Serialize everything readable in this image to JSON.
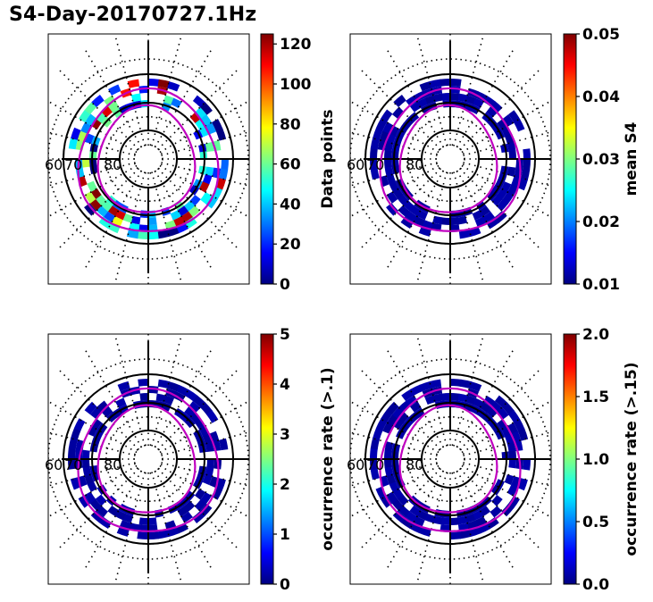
{
  "title": "S4-Day-20170727.1Hz",
  "chart_data": {
    "type": "heatmap",
    "projection": "polar (magnetic latitude / MLT)",
    "title": "S4-Day-20170727.1Hz",
    "latitude_labels": [
      "60",
      "70",
      "80"
    ],
    "oval_color": "#c000c0",
    "panels": [
      {
        "id": "data-points",
        "colorbar_label": "Data points",
        "colormap": "jet",
        "vmin": 0,
        "vmax": 125,
        "ticks": [
          "0",
          "20",
          "40",
          "60",
          "80",
          "100",
          "120"
        ],
        "tick_values": [
          0,
          20,
          40,
          60,
          80,
          100,
          120
        ],
        "typical_cell_values": "10-120, highest near auroral oval",
        "grid": true
      },
      {
        "id": "mean-s4",
        "colorbar_label": "mean S4",
        "colormap": "jet",
        "vmin": 0.01,
        "vmax": 0.05,
        "ticks": [
          "0.01",
          "0.02",
          "0.03",
          "0.04",
          "0.05"
        ],
        "tick_values": [
          0.01,
          0.02,
          0.03,
          0.04,
          0.05
        ],
        "typical_cell_values": "~0.01",
        "grid": true
      },
      {
        "id": "occurrence-rate-01",
        "colorbar_label": "occurrence rate (>.1)",
        "colormap": "jet",
        "vmin": 0,
        "vmax": 5,
        "ticks": [
          "0",
          "1",
          "2",
          "3",
          "4",
          "5"
        ],
        "tick_values": [
          0,
          1,
          2,
          3,
          4,
          5
        ],
        "typical_cell_values": "~0",
        "grid": true
      },
      {
        "id": "occurrence-rate-015",
        "colorbar_label": "occurrence rate (>.15)",
        "colormap": "jet",
        "vmin": 0.0,
        "vmax": 2.0,
        "ticks": [
          "0.0",
          "0.5",
          "1.0",
          "1.5",
          "2.0"
        ],
        "tick_values": [
          0.0,
          0.5,
          1.0,
          1.5,
          2.0
        ],
        "typical_cell_values": "~0",
        "grid": true
      }
    ]
  }
}
